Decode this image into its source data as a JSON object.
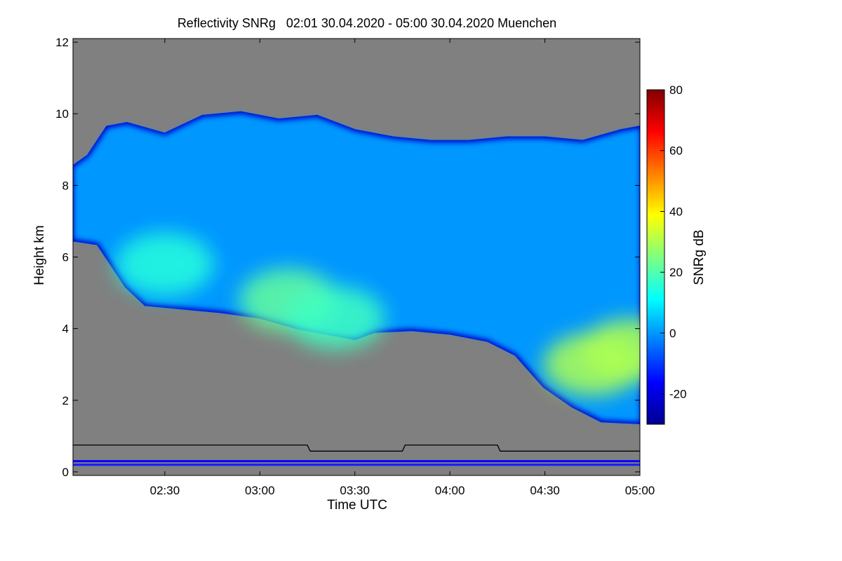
{
  "chart_data": {
    "type": "heatmap",
    "title": "Reflectivity SNRg   02:01 30.04.2020 - 05:00 30.04.2020 Muenchen",
    "xlabel": "Time UTC",
    "ylabel": "Height km",
    "xlim": [
      2.0167,
      5.0
    ],
    "ylim": [
      -0.1,
      12.1
    ],
    "x_ticks": [
      {
        "value": 2.5,
        "label": "02:30"
      },
      {
        "value": 3.0,
        "label": "03:00"
      },
      {
        "value": 3.5,
        "label": "03:30"
      },
      {
        "value": 4.0,
        "label": "04:00"
      },
      {
        "value": 4.5,
        "label": "04:30"
      },
      {
        "value": 5.0,
        "label": "05:00"
      }
    ],
    "y_ticks": [
      {
        "value": 0,
        "label": "0"
      },
      {
        "value": 2,
        "label": "2"
      },
      {
        "value": 4,
        "label": "4"
      },
      {
        "value": 6,
        "label": "6"
      },
      {
        "value": 8,
        "label": "8"
      },
      {
        "value": 10,
        "label": "10"
      },
      {
        "value": 12,
        "label": "12"
      }
    ],
    "colorbar": {
      "label": "SNRg dB",
      "range": [
        -30,
        80
      ],
      "ticks": [
        {
          "value": -20,
          "label": "-20"
        },
        {
          "value": 0,
          "label": "0"
        },
        {
          "value": 20,
          "label": "20"
        },
        {
          "value": 40,
          "label": "40"
        },
        {
          "value": 60,
          "label": "60"
        },
        {
          "value": 80,
          "label": "80"
        }
      ],
      "colors": [
        "#00008f",
        "#0000ff",
        "#0080ff",
        "#00ffff",
        "#80ff80",
        "#ffff00",
        "#ff8000",
        "#ff0000",
        "#800000"
      ]
    },
    "background_color": "#808080",
    "echo_region": {
      "top_km": [
        {
          "t": 2.02,
          "h": 8.5
        },
        {
          "t": 2.1,
          "h": 8.8
        },
        {
          "t": 2.2,
          "h": 9.6
        },
        {
          "t": 2.3,
          "h": 9.7
        },
        {
          "t": 2.5,
          "h": 9.4
        },
        {
          "t": 2.7,
          "h": 9.9
        },
        {
          "t": 2.9,
          "h": 10.0
        },
        {
          "t": 3.1,
          "h": 9.8
        },
        {
          "t": 3.3,
          "h": 9.9
        },
        {
          "t": 3.5,
          "h": 9.5
        },
        {
          "t": 3.7,
          "h": 9.3
        },
        {
          "t": 3.9,
          "h": 9.2
        },
        {
          "t": 4.1,
          "h": 9.2
        },
        {
          "t": 4.3,
          "h": 9.3
        },
        {
          "t": 4.5,
          "h": 9.3
        },
        {
          "t": 4.7,
          "h": 9.2
        },
        {
          "t": 4.9,
          "h": 9.5
        },
        {
          "t": 5.0,
          "h": 9.6
        }
      ],
      "base_km": [
        {
          "t": 2.02,
          "h": 6.5
        },
        {
          "t": 2.15,
          "h": 6.4
        },
        {
          "t": 2.3,
          "h": 5.2
        },
        {
          "t": 2.4,
          "h": 4.7
        },
        {
          "t": 2.6,
          "h": 4.6
        },
        {
          "t": 2.8,
          "h": 4.5
        },
        {
          "t": 3.0,
          "h": 4.35
        },
        {
          "t": 3.2,
          "h": 4.05
        },
        {
          "t": 3.4,
          "h": 3.85
        },
        {
          "t": 3.5,
          "h": 3.75
        },
        {
          "t": 3.6,
          "h": 3.95
        },
        {
          "t": 3.8,
          "h": 4.0
        },
        {
          "t": 4.0,
          "h": 3.9
        },
        {
          "t": 4.2,
          "h": 3.7
        },
        {
          "t": 4.35,
          "h": 3.3
        },
        {
          "t": 4.5,
          "h": 2.4
        },
        {
          "t": 4.65,
          "h": 1.85
        },
        {
          "t": 4.8,
          "h": 1.45
        },
        {
          "t": 5.0,
          "h": 1.4
        }
      ],
      "peak_snr": [
        {
          "t": 2.5,
          "h": 5.8,
          "snr": 15
        },
        {
          "t": 3.15,
          "h": 4.8,
          "snr": 22
        },
        {
          "t": 3.4,
          "h": 4.3,
          "snr": 18
        },
        {
          "t": 4.75,
          "h": 3.0,
          "snr": 30
        },
        {
          "t": 4.95,
          "h": 3.4,
          "snr": 30
        }
      ]
    },
    "overlay_line": {
      "color": "#000000",
      "points": [
        {
          "t": 2.0167,
          "h": 0.75
        },
        {
          "t": 3.25,
          "h": 0.75
        },
        {
          "t": 3.265,
          "h": 0.58
        },
        {
          "t": 3.75,
          "h": 0.58
        },
        {
          "t": 3.765,
          "h": 0.75
        },
        {
          "t": 4.25,
          "h": 0.75
        },
        {
          "t": 4.265,
          "h": 0.58
        },
        {
          "t": 5.0,
          "h": 0.58
        }
      ]
    },
    "ground_clutter": [
      {
        "h": 0.3,
        "color": "#0000ff"
      },
      {
        "h": 0.2,
        "color": "#1a1aff"
      }
    ]
  }
}
